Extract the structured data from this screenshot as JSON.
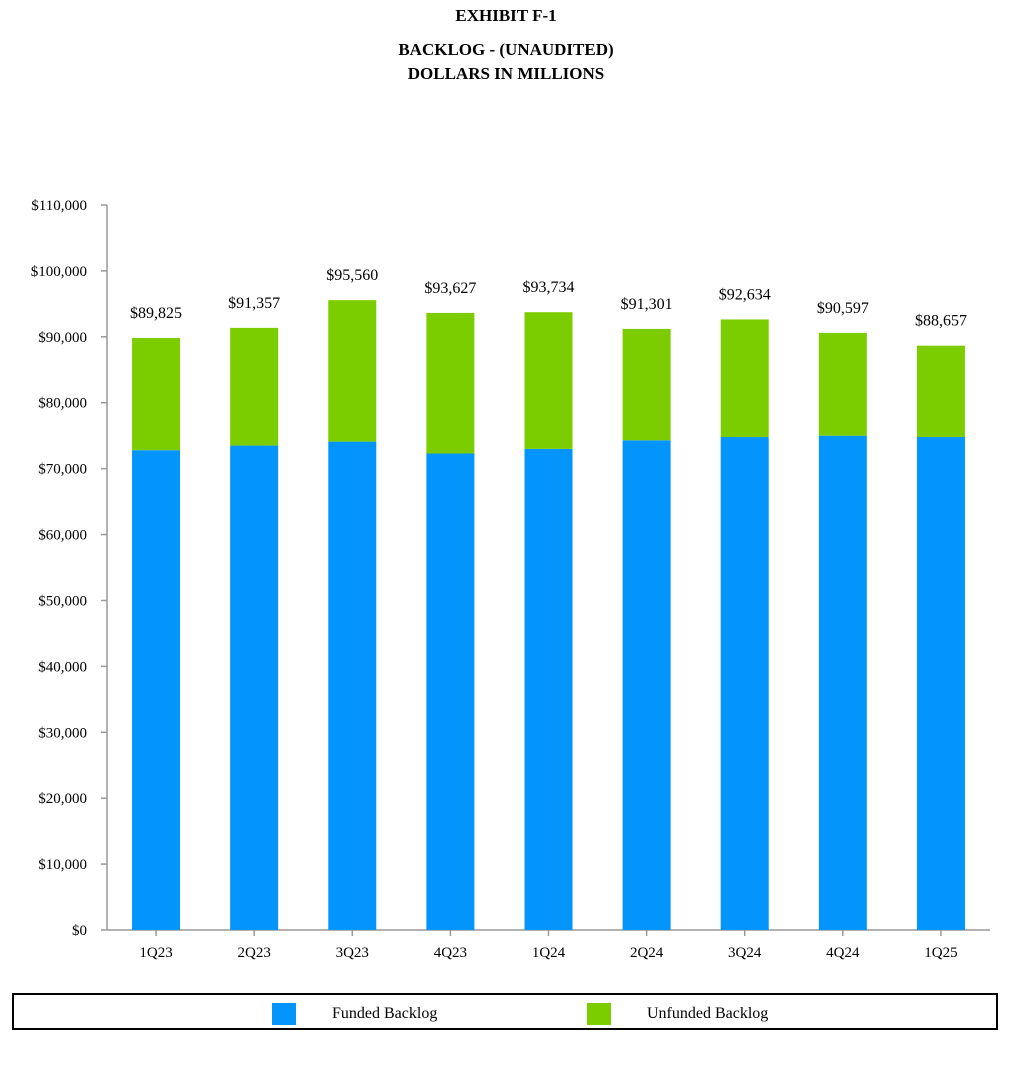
{
  "header": {
    "exhibit": "EXHIBIT F-1",
    "subtitle_line1": "BACKLOG - (UNAUDITED)",
    "subtitle_line2": "DOLLARS IN MILLIONS"
  },
  "colors": {
    "funded": "#0394fc",
    "unfunded": "#7ccd00",
    "axis": "#999999"
  },
  "legend": {
    "funded_label": "Funded Backlog",
    "unfunded_label": "Unfunded Backlog"
  },
  "chart_data": {
    "type": "bar",
    "stacked": true,
    "categories": [
      "1Q23",
      "2Q23",
      "3Q23",
      "4Q23",
      "1Q24",
      "2Q24",
      "3Q24",
      "4Q24",
      "1Q25"
    ],
    "series": [
      {
        "name": "Funded Backlog",
        "values": [
          72800,
          73500,
          74100,
          72300,
          73000,
          74300,
          74800,
          75000,
          74800
        ]
      },
      {
        "name": "Unfunded Backlog",
        "values": [
          17025,
          17857,
          21460,
          21327,
          20734,
          16901,
          17834,
          15597,
          13857
        ]
      }
    ],
    "totals": [
      89825,
      91357,
      95560,
      93627,
      93734,
      91301,
      92634,
      90597,
      88657
    ],
    "total_labels": [
      "$89,825",
      "$91,357",
      "$95,560",
      "$93,627",
      "$93,734",
      "$91,301",
      "$92,634",
      "$90,597",
      "$88,657"
    ],
    "ylim": [
      0,
      110000
    ],
    "yticks": [
      0,
      10000,
      20000,
      30000,
      40000,
      50000,
      60000,
      70000,
      80000,
      90000,
      100000,
      110000
    ],
    "ytick_labels": [
      "$0",
      "$10,000",
      "$20,000",
      "$30,000",
      "$40,000",
      "$50,000",
      "$60,000",
      "$70,000",
      "$80,000",
      "$90,000",
      "$100,000",
      "$110,000"
    ],
    "grid": false,
    "legend_position": "bottom"
  }
}
